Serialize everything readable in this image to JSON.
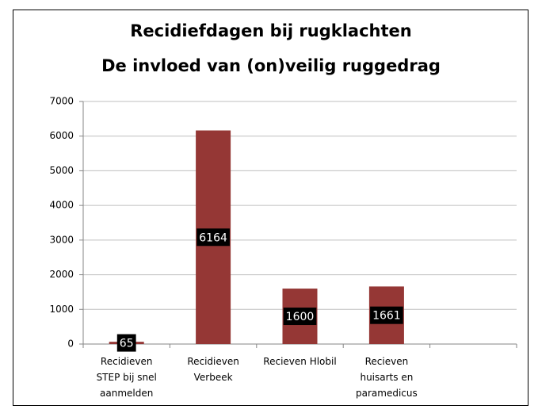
{
  "chart_data": {
    "type": "bar",
    "title": "Recidiefdagen bij rugklachten",
    "subtitle": "De invloed van (on)veilig ruggedrag",
    "categories": [
      "Recidieven STEP bij snel aanmelden",
      "Recidieven Verbeek",
      "Recieven Hlobil",
      "Recieven huisarts en paramedicus",
      null
    ],
    "values": [
      65,
      6164,
      1600,
      1661,
      null
    ],
    "color": "#953735",
    "ylim": [
      0,
      7000
    ],
    "yticks": [
      0,
      1000,
      2000,
      3000,
      4000,
      5000,
      6000,
      7000
    ],
    "grid": true
  }
}
